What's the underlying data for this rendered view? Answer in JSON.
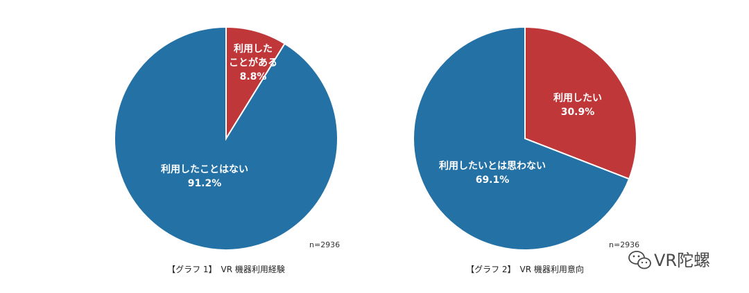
{
  "chart_data": [
    {
      "type": "pie",
      "title": "【グラフ 1】　VR 機器利用経験",
      "n_label": "n=2936",
      "slices": [
        {
          "label_lines": [
            "利用した",
            "ことがある"
          ],
          "value_label": "8.8%",
          "value": 8.8,
          "color": "#c0373a"
        },
        {
          "label_lines": [
            "利用したことはない"
          ],
          "value_label": "91.2%",
          "value": 91.2,
          "color": "#2471a6"
        }
      ]
    },
    {
      "type": "pie",
      "title": "【グラフ 2】　VR 機器利用意向",
      "n_label": "n=2936",
      "slices": [
        {
          "label_lines": [
            "利用したい"
          ],
          "value_label": "30.9%",
          "value": 30.9,
          "color": "#c0373a"
        },
        {
          "label_lines": [
            "利用したいとは思わない"
          ],
          "value_label": "69.1%",
          "value": 69.1,
          "color": "#2471a6"
        }
      ]
    }
  ],
  "watermark": {
    "text": "VR陀螺",
    "icon": "wechat-icon"
  }
}
